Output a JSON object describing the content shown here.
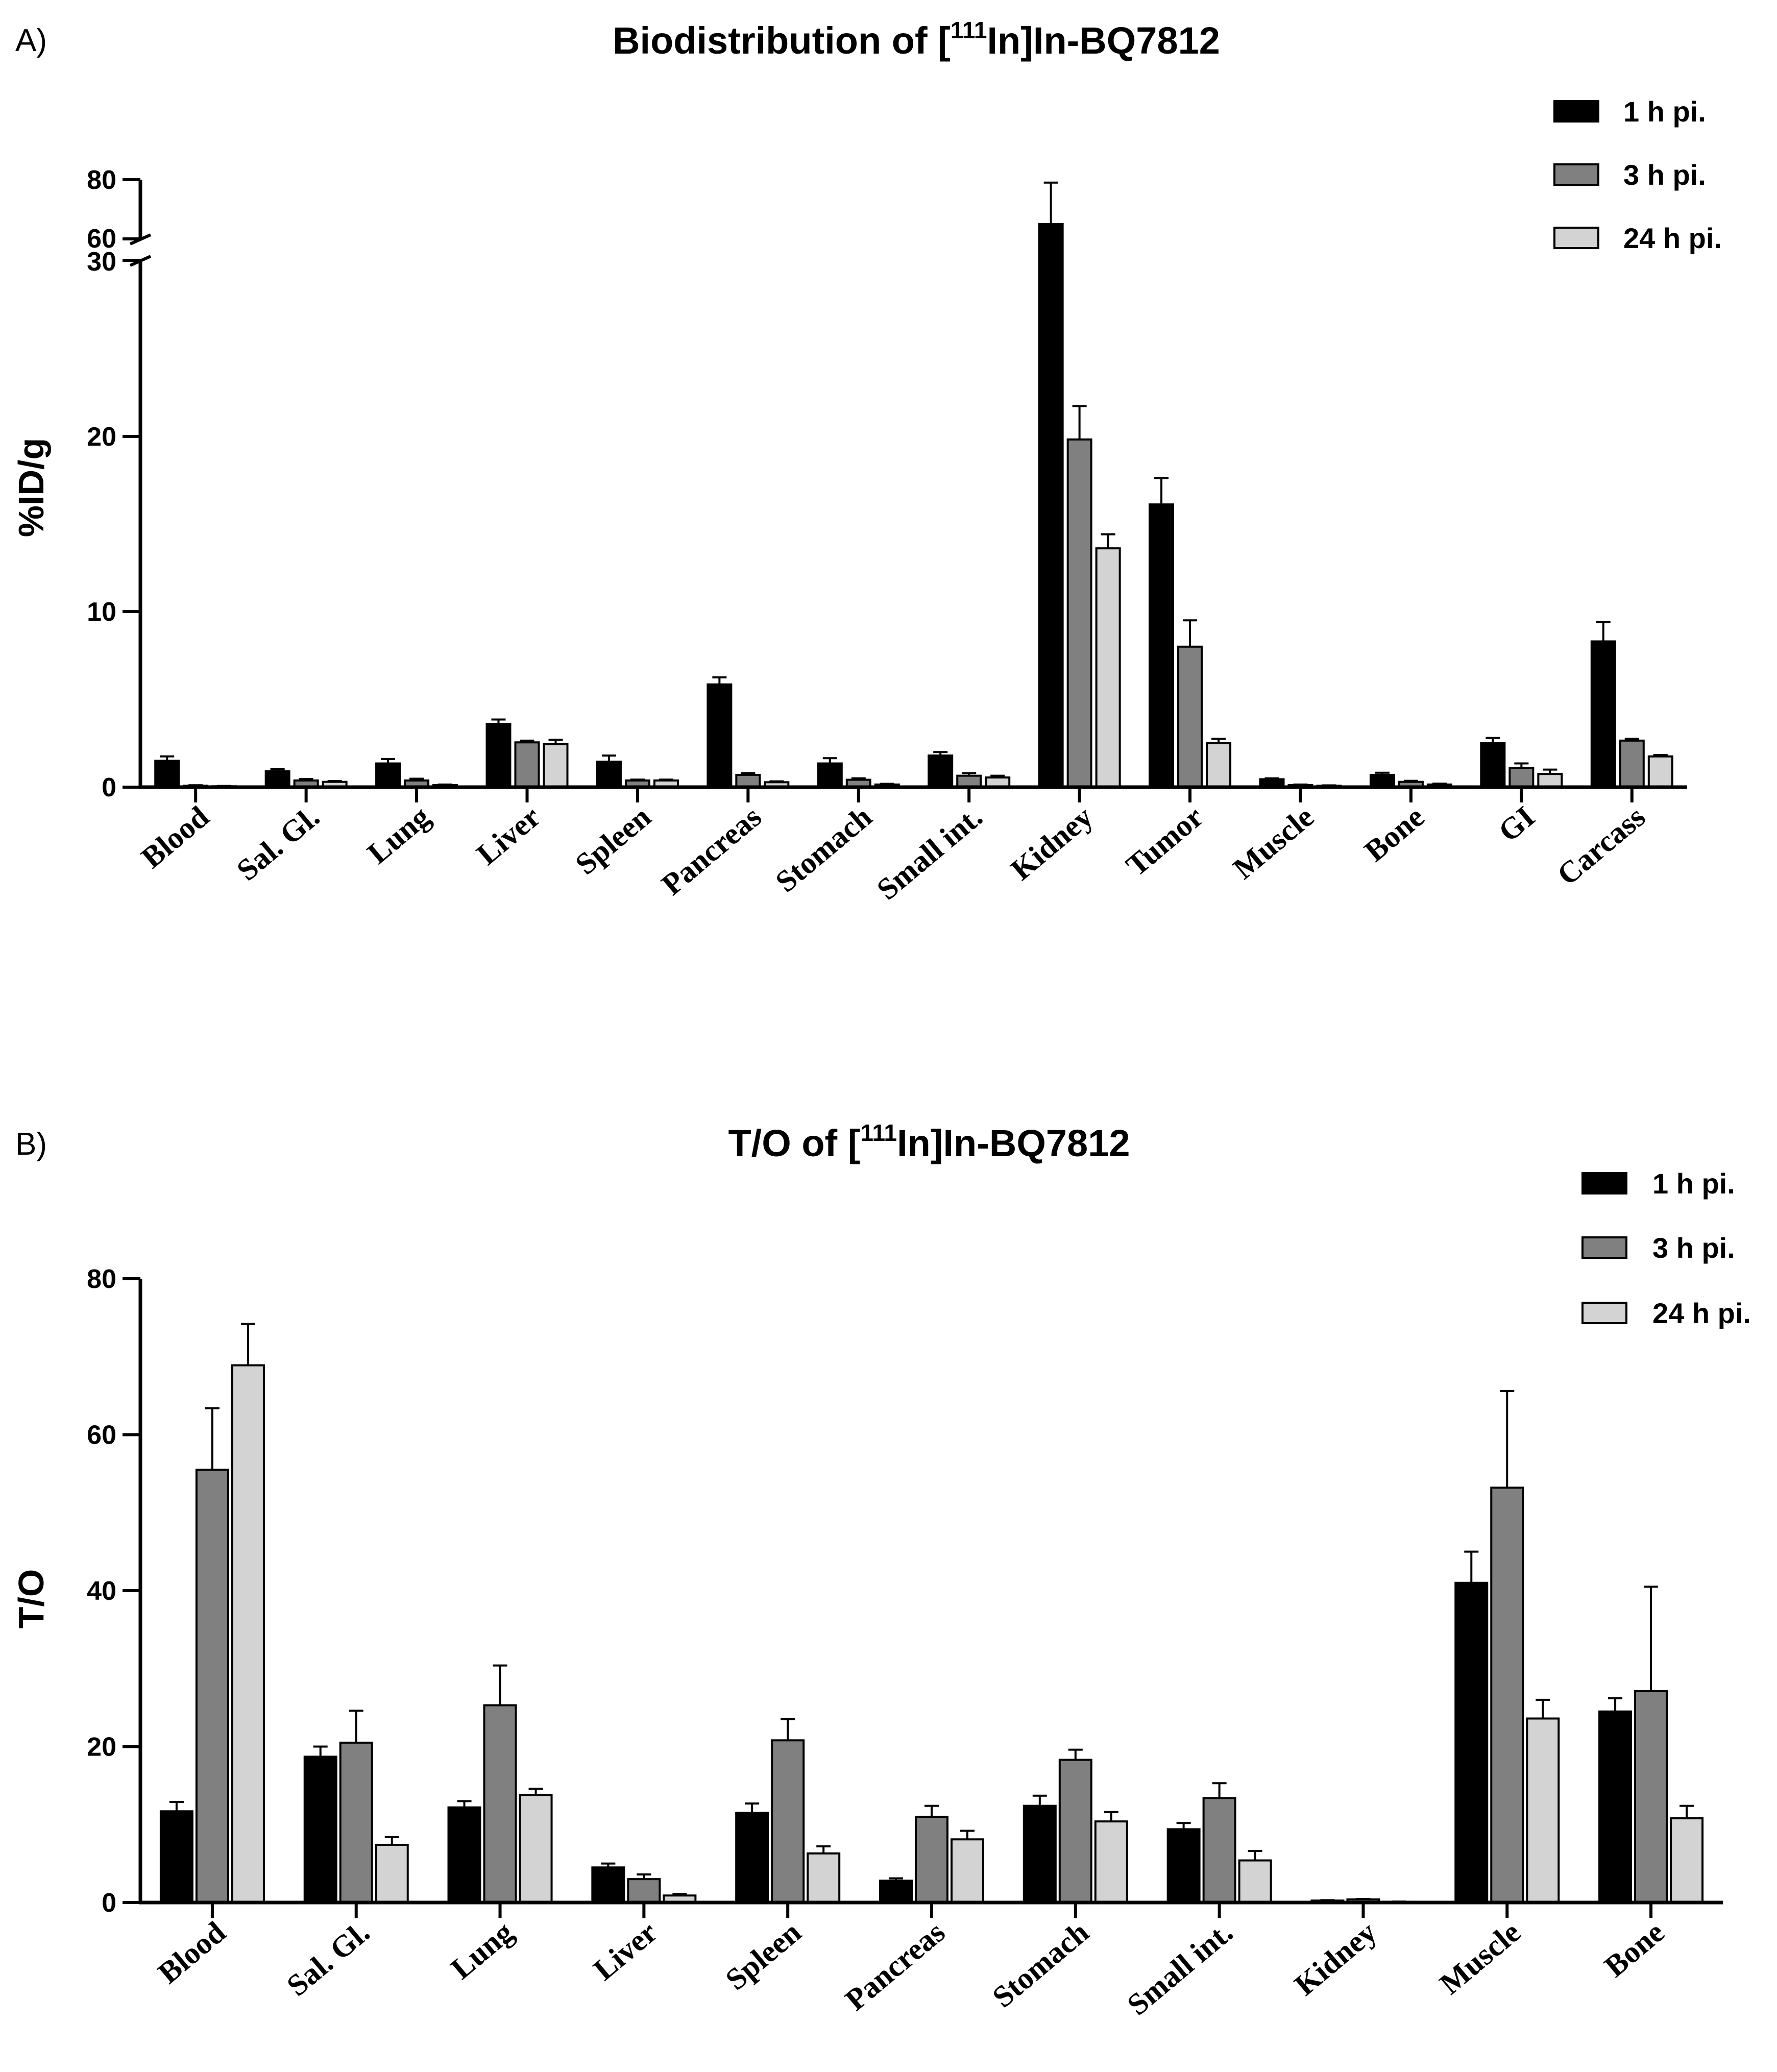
{
  "chart_data": [
    {
      "panel": "A)",
      "type": "bar",
      "title_parts": [
        "Biodistribution of [",
        "111",
        "In]In-BQ7812"
      ],
      "ylabel": "%ID/g",
      "xlabel": "",
      "axis_break": {
        "lower_range": [
          0,
          30
        ],
        "upper_range": [
          60,
          80
        ],
        "lower_ticks": [
          "0",
          "10",
          "20",
          "30"
        ],
        "upper_ticks": [
          "60",
          "80"
        ]
      },
      "categories": [
        "Blood",
        "Sal. Gl.",
        "Lung",
        "Liver",
        "Spleen",
        "Pancreas",
        "Stomach",
        "Small int.",
        "Kidney",
        "Tumor",
        "Muscle",
        "Bone",
        "GI",
        "Carcass"
      ],
      "series": [
        {
          "name": "1 h pi.",
          "color": "#000000",
          "values": [
            1.5,
            0.9,
            1.35,
            3.6,
            1.45,
            5.85,
            1.35,
            1.8,
            65.0,
            16.1,
            0.45,
            0.7,
            2.5,
            8.3
          ],
          "errors": [
            0.25,
            0.12,
            0.25,
            0.25,
            0.35,
            0.4,
            0.3,
            0.2,
            14.0,
            1.5,
            0.05,
            0.12,
            0.3,
            1.1
          ]
        },
        {
          "name": "3 h pi.",
          "color": "#808080",
          "values": [
            0.08,
            0.38,
            0.38,
            2.55,
            0.38,
            0.7,
            0.42,
            0.65,
            19.8,
            8.0,
            0.12,
            0.3,
            1.1,
            2.65
          ],
          "errors": [
            0.03,
            0.08,
            0.1,
            0.1,
            0.05,
            0.1,
            0.08,
            0.15,
            1.9,
            1.5,
            0.03,
            0.06,
            0.25,
            0.1
          ]
        },
        {
          "name": "24 h pi.",
          "color": "#d3d3d3",
          "values": [
            0.05,
            0.3,
            0.12,
            2.45,
            0.38,
            0.28,
            0.15,
            0.55,
            13.6,
            2.5,
            0.08,
            0.15,
            0.75,
            1.75
          ],
          "errors": [
            0.02,
            0.05,
            0.03,
            0.25,
            0.05,
            0.05,
            0.04,
            0.1,
            0.8,
            0.25,
            0.02,
            0.05,
            0.25,
            0.08
          ]
        }
      ],
      "legend_position": "top-right"
    },
    {
      "panel": "B)",
      "type": "bar",
      "title_parts": [
        "T/O of [",
        "111",
        "In]In-BQ7812"
      ],
      "ylabel": "T/O",
      "xlabel": "",
      "ylim": [
        0,
        80
      ],
      "yticks": [
        "0",
        "20",
        "40",
        "60",
        "80"
      ],
      "categories": [
        "Blood",
        "Sal. Gl.",
        "Lung",
        "Liver",
        "Spleen",
        "Pancreas",
        "Stomach",
        "Small int.",
        "Kidney",
        "Muscle",
        "Bone"
      ],
      "series": [
        {
          "name": "1 h pi.",
          "color": "#000000",
          "values": [
            11.7,
            18.7,
            12.2,
            4.5,
            11.5,
            2.8,
            12.4,
            9.4,
            0.25,
            41.0,
            24.5
          ],
          "errors": [
            1.2,
            1.3,
            0.8,
            0.5,
            1.2,
            0.3,
            1.3,
            0.8,
            0.05,
            4.0,
            1.7
          ]
        },
        {
          "name": "3 h pi.",
          "color": "#808080",
          "values": [
            55.5,
            20.5,
            25.3,
            3.0,
            20.8,
            11.0,
            18.3,
            13.4,
            0.4,
            53.2,
            27.1
          ],
          "errors": [
            7.9,
            4.1,
            5.1,
            0.6,
            2.7,
            1.4,
            1.3,
            1.9,
            0.05,
            12.4,
            13.4
          ]
        },
        {
          "name": "24 h pi.",
          "color": "#d3d3d3",
          "values": [
            68.9,
            7.4,
            13.8,
            0.9,
            6.3,
            8.1,
            10.4,
            5.4,
            0.1,
            23.6,
            10.8
          ],
          "errors": [
            5.3,
            1.0,
            0.8,
            0.2,
            0.9,
            1.1,
            1.2,
            1.2,
            0.02,
            2.4,
            1.6
          ]
        }
      ],
      "legend_position": "top-right"
    }
  ]
}
